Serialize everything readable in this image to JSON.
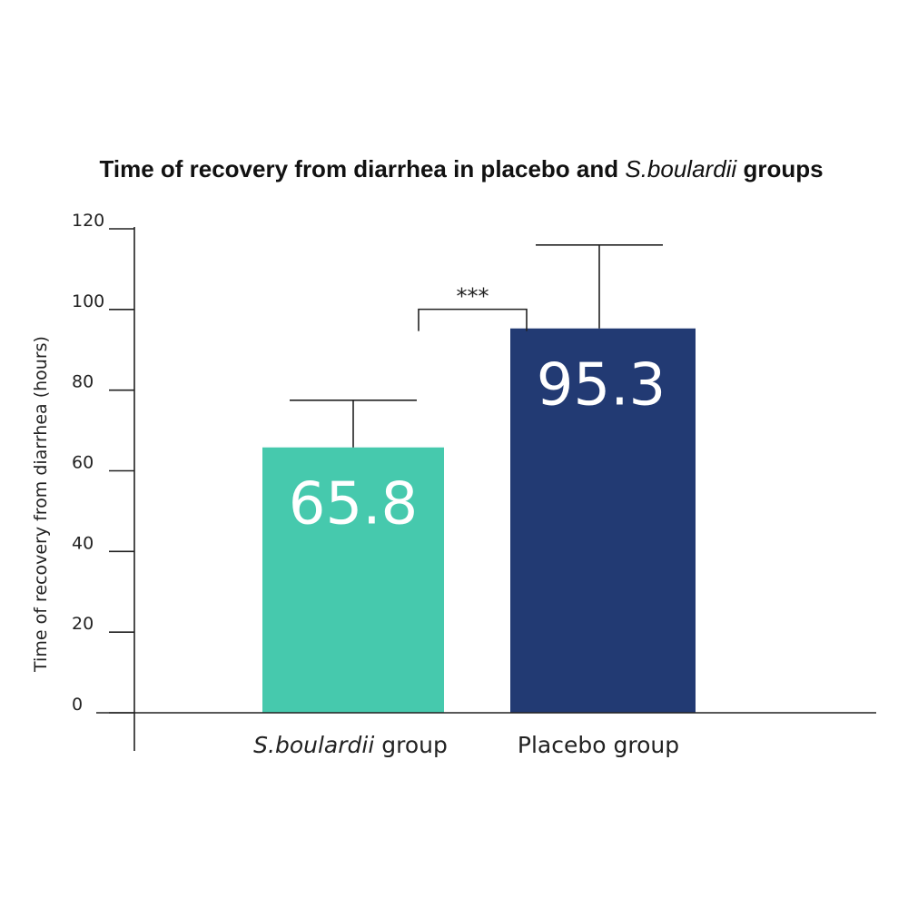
{
  "chart_data": {
    "type": "bar",
    "title": {
      "prefix": "Time of recovery from diarrhea in placebo and ",
      "italic": "S.boulardii",
      "suffix": " groups"
    },
    "ylabel": "Time of recovery from diarrhea (hours)",
    "xlabel": "",
    "ylim": [
      0,
      120
    ],
    "yticks": [
      "0",
      "20",
      "40",
      "60",
      "80",
      "100",
      "120"
    ],
    "grid": false,
    "bars": [
      {
        "category_italic": "S.boulardii",
        "category_rest": " group",
        "value": 65.8,
        "value_label": "65.8",
        "error_upper": 77.5,
        "color": "#46c9ad"
      },
      {
        "category_italic": "",
        "category_rest": "Placebo group",
        "value": 95.3,
        "value_label": "95.3",
        "error_upper": 116,
        "color": "#223a73"
      }
    ],
    "significance": {
      "label": "***",
      "bracket_level": 105,
      "between": [
        0,
        1
      ]
    }
  }
}
